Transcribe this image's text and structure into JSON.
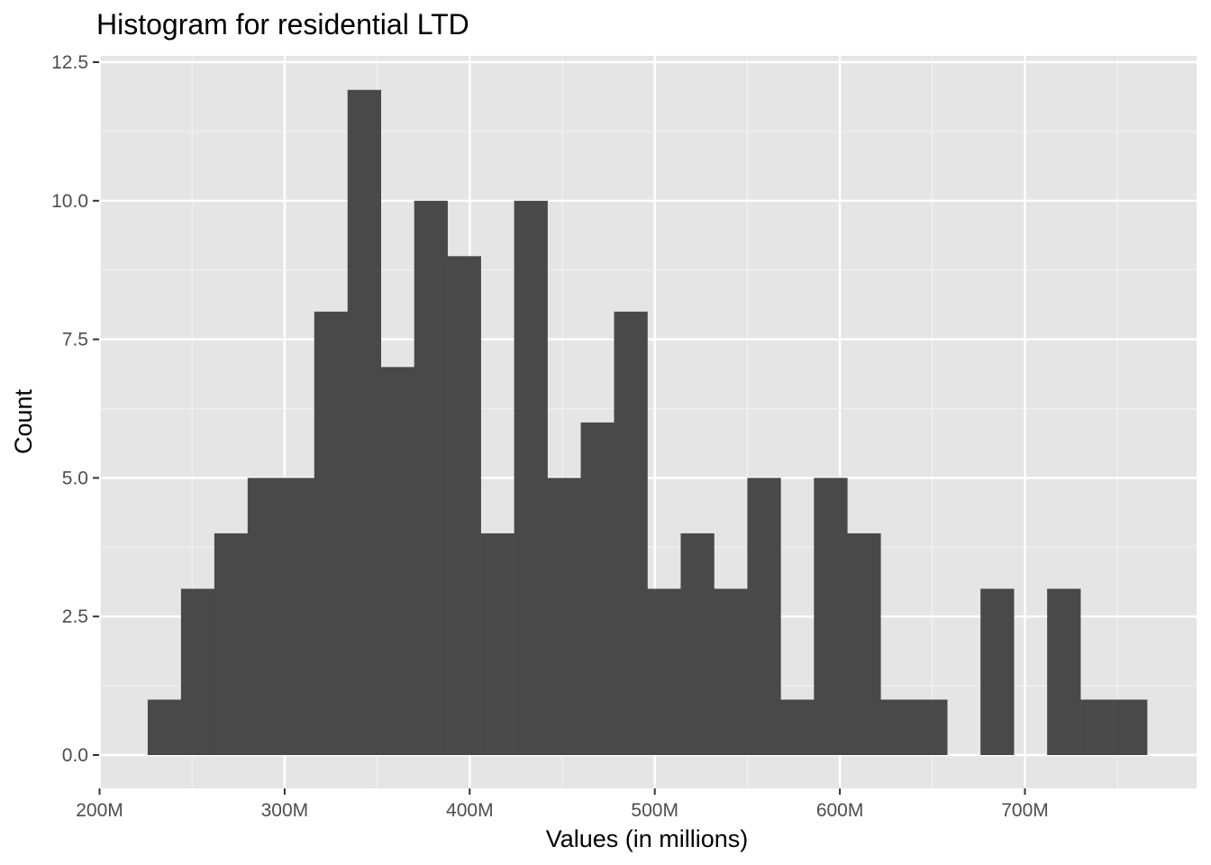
{
  "chart_data": {
    "type": "bar",
    "subtype": "histogram",
    "title": "Histogram for residential LTD",
    "xlabel": "Values (in millions)",
    "ylabel": "Count",
    "xlim": [
      200,
      780
    ],
    "ylim": [
      -0.7,
      12.5
    ],
    "x_ticks": [
      200,
      300,
      400,
      500,
      600,
      700
    ],
    "x_tick_labels": [
      "200M",
      "300M",
      "400M",
      "500M",
      "600M",
      "700M"
    ],
    "y_ticks": [
      0,
      2.5,
      5,
      7.5,
      10,
      12.5
    ],
    "y_tick_labels": [
      "0.0",
      "2.5",
      "5.0",
      "7.5",
      "10.0",
      "12.5"
    ],
    "bin_start": 226,
    "bin_width": 18,
    "counts": [
      1,
      3,
      4,
      5,
      5,
      8,
      12,
      7,
      10,
      9,
      4,
      10,
      5,
      6,
      8,
      3,
      4,
      3,
      5,
      1,
      5,
      4,
      1,
      1,
      0,
      3,
      0,
      3,
      1,
      1
    ],
    "grid": true,
    "background": "#e5e5e5",
    "bar_color": "#494949"
  }
}
